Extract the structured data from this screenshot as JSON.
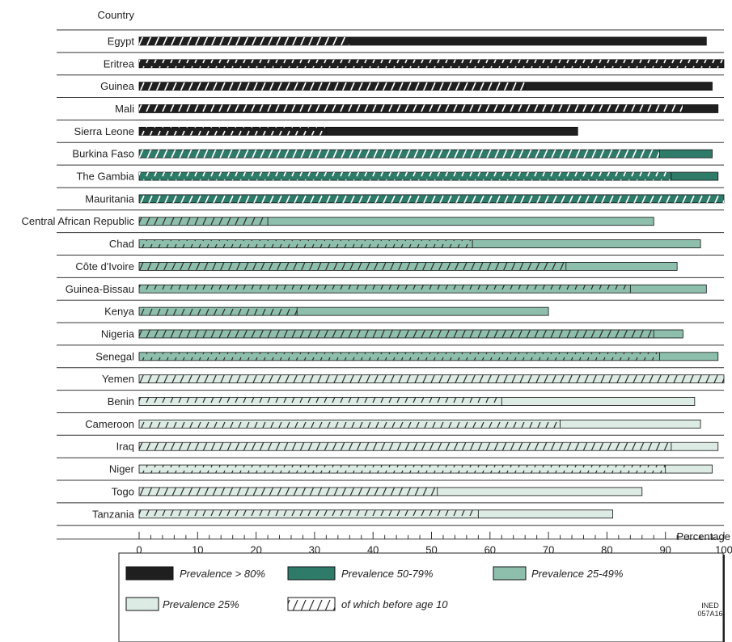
{
  "chart_data": {
    "type": "bar",
    "orientation": "horizontal",
    "stacked": true,
    "category_header": "Country",
    "xlabel": "Percentage",
    "xlim": [
      0,
      100
    ],
    "xticks": [
      0,
      10,
      20,
      30,
      40,
      50,
      60,
      70,
      80,
      90,
      100
    ],
    "grid": false,
    "legend_position": "bottom",
    "groups": [
      {
        "key": "g80",
        "label": "Prevalence > 80%",
        "color": "#1f1f1f",
        "hatch": "#ffffff"
      },
      {
        "key": "g50",
        "label": "Prevalence 50-79%",
        "color": "#2e7b6a",
        "hatch": "#ffffff"
      },
      {
        "key": "g25",
        "label": "Prevalence 25-49%",
        "color": "#8dbfac",
        "hatch": "#2a2a2a"
      },
      {
        "key": "glow",
        "label": "Prevalence 25%",
        "color": "#dcece4",
        "hatch": "#2a2a2a"
      }
    ],
    "hatch_label": "of which before age 10",
    "countries": [
      {
        "name": "Egypt",
        "group": "g80",
        "total": 97,
        "before10": 36
      },
      {
        "name": "Eritrea",
        "group": "g80",
        "total": 100,
        "before10": 100
      },
      {
        "name": "Guinea",
        "group": "g80",
        "total": 98,
        "before10": 66
      },
      {
        "name": "Mali",
        "group": "g80",
        "total": 99,
        "before10": 93
      },
      {
        "name": "Sierra Leone",
        "group": "g80",
        "total": 75,
        "before10": 32
      },
      {
        "name": "Burkina Faso",
        "group": "g50",
        "total": 98,
        "before10": 89
      },
      {
        "name": "The Gambia",
        "group": "g50",
        "total": 99,
        "before10": 91
      },
      {
        "name": "Mauritania",
        "group": "g50",
        "total": 100,
        "before10": 100
      },
      {
        "name": "Central African Republic",
        "group": "g25",
        "total": 88,
        "before10": 22
      },
      {
        "name": "Chad",
        "group": "g25",
        "total": 96,
        "before10": 57
      },
      {
        "name": "Côte d'Ivoire",
        "group": "g25",
        "total": 92,
        "before10": 73
      },
      {
        "name": "Guinea-Bissau",
        "group": "g25",
        "total": 97,
        "before10": 84
      },
      {
        "name": "Kenya",
        "group": "g25",
        "total": 70,
        "before10": 27
      },
      {
        "name": "Nigeria",
        "group": "g25",
        "total": 93,
        "before10": 88
      },
      {
        "name": "Senegal",
        "group": "g25",
        "total": 99,
        "before10": 89
      },
      {
        "name": "Yemen",
        "group": "glow",
        "total": 100,
        "before10": 100
      },
      {
        "name": "Benin",
        "group": "glow",
        "total": 95,
        "before10": 62
      },
      {
        "name": "Cameroon",
        "group": "glow",
        "total": 96,
        "before10": 72
      },
      {
        "name": "Iraq",
        "group": "glow",
        "total": 99,
        "before10": 91
      },
      {
        "name": "Niger",
        "group": "glow",
        "total": 98,
        "before10": 90
      },
      {
        "name": "Togo",
        "group": "glow",
        "total": 86,
        "before10": 51
      },
      {
        "name": "Tanzania",
        "group": "glow",
        "total": 81,
        "before10": 58
      }
    ]
  },
  "footer": {
    "code_line1": "INED",
    "code_line2": "057A16"
  }
}
